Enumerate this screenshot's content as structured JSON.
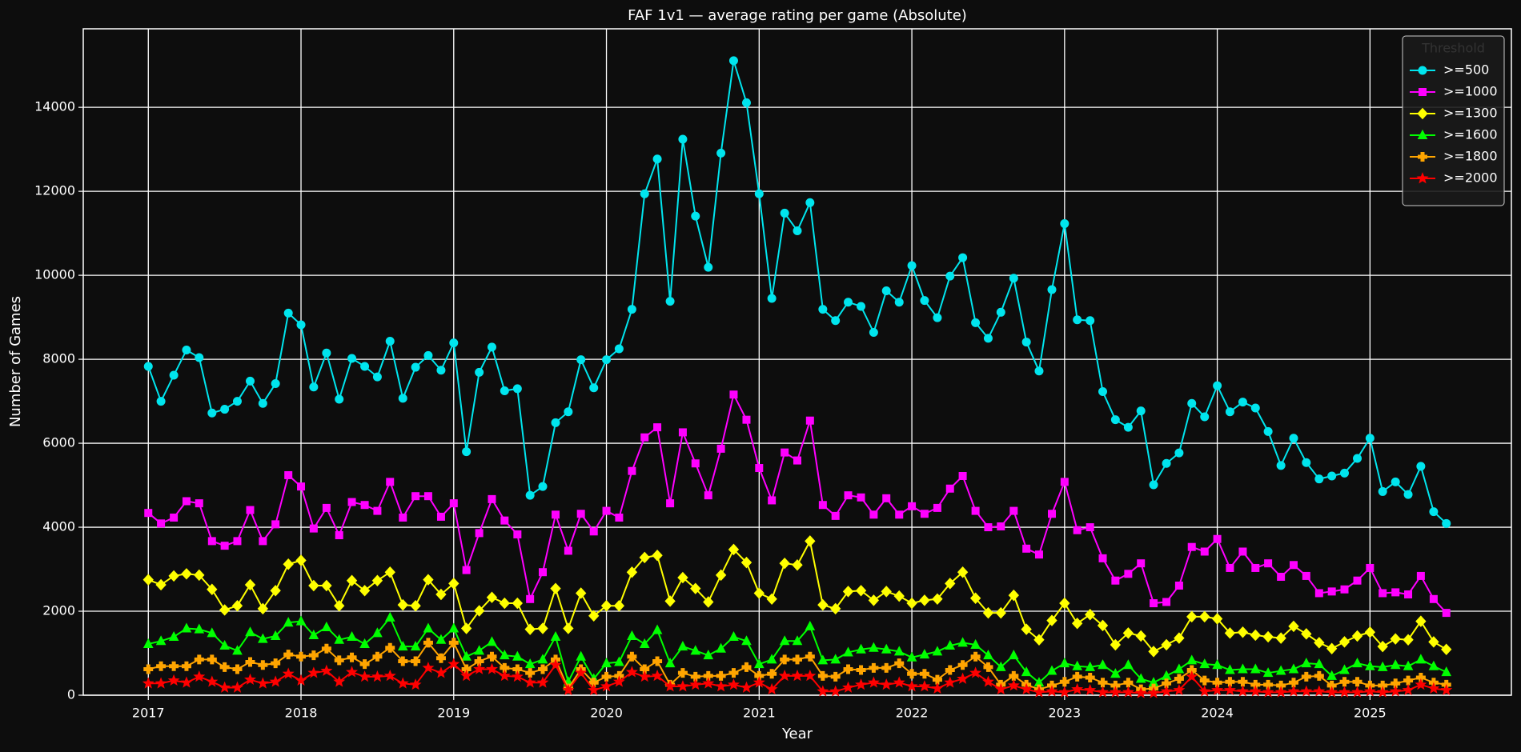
{
  "chart_data": {
    "type": "line",
    "title": "FAF 1v1 — average rating per game (Absolute)",
    "xlabel": "Year",
    "ylabel": "Number of Games",
    "x": [
      2017,
      2017.083,
      2017.167,
      2017.25,
      2017.333,
      2017.417,
      2017.5,
      2017.583,
      2017.667,
      2017.75,
      2017.833,
      2017.917,
      2018,
      2018.083,
      2018.167,
      2018.25,
      2018.333,
      2018.417,
      2018.5,
      2018.583,
      2018.667,
      2018.75,
      2018.833,
      2018.917,
      2019,
      2019.083,
      2019.167,
      2019.25,
      2019.333,
      2019.417,
      2019.5,
      2019.583,
      2019.667,
      2019.75,
      2019.833,
      2019.917,
      2020,
      2020.083,
      2020.167,
      2020.25,
      2020.333,
      2020.417,
      2020.5,
      2020.583,
      2020.667,
      2020.75,
      2020.833,
      2020.917,
      2021,
      2021.083,
      2021.167,
      2021.25,
      2021.333,
      2021.417,
      2021.5,
      2021.583,
      2021.667,
      2021.75,
      2021.833,
      2021.917,
      2022,
      2022.083,
      2022.167,
      2022.25,
      2022.333,
      2022.417,
      2022.5,
      2022.583,
      2022.667,
      2022.75,
      2022.833,
      2022.917,
      2023,
      2023.083,
      2023.167,
      2023.25,
      2023.333,
      2023.417,
      2023.5,
      2023.583,
      2023.667,
      2023.75,
      2023.833,
      2023.917,
      2024,
      2024.083,
      2024.167,
      2024.25,
      2024.333,
      2024.417,
      2024.5,
      2024.583,
      2024.667,
      2024.75,
      2024.833,
      2024.917,
      2025,
      2025.083,
      2025.167,
      2025.25,
      2025.333,
      2025.417,
      2025.5
    ],
    "xlim": [
      2016.574,
      2025.926
    ],
    "xticks": [
      2017,
      2018,
      2019,
      2020,
      2021,
      2022,
      2023,
      2024,
      2025
    ],
    "ylim": [
      0,
      15870
    ],
    "yticks": [
      0,
      2000,
      4000,
      6000,
      8000,
      10000,
      12000,
      14000
    ],
    "grid": true,
    "legend_title": "Threshold",
    "legend_loc": "upper right",
    "series": [
      {
        "name": ">=500",
        "color": "#00e5ee",
        "marker": "o",
        "values": [
          7830,
          7000,
          7620,
          8220,
          8040,
          6720,
          6810,
          7000,
          7480,
          6950,
          7420,
          9100,
          8820,
          7340,
          8150,
          7050,
          8020,
          7830,
          7580,
          8430,
          7070,
          7810,
          8090,
          7740,
          8390,
          5800,
          7690,
          8290,
          7250,
          7300,
          4760,
          4970,
          6490,
          6750,
          7990,
          7320,
          7990,
          8250,
          9190,
          11940,
          12770,
          9380,
          13240,
          11410,
          10190,
          12910,
          15110,
          14110,
          11940,
          9450,
          11480,
          11060,
          11730,
          9190,
          8920,
          9360,
          9260,
          8640,
          9630,
          9360,
          10230,
          9400,
          8990,
          9980,
          10420,
          8870,
          8500,
          9120,
          9930,
          8410,
          7720,
          9660,
          11230,
          8940,
          8920,
          7230,
          6560,
          6380,
          6770,
          5010,
          5520,
          5770,
          6950,
          6630,
          7370,
          6750,
          6980,
          6840,
          6280,
          5470,
          6120,
          5540,
          5150,
          5220,
          5290,
          5640,
          6120,
          4850,
          5080,
          4780,
          5450,
          4370,
          4090
        ]
      },
      {
        "name": ">=1000",
        "color": "#ff00ff",
        "marker": "s",
        "values": [
          4340,
          4090,
          4230,
          4620,
          4570,
          3670,
          3560,
          3670,
          4410,
          3670,
          4070,
          5240,
          4970,
          3970,
          4460,
          3810,
          4600,
          4530,
          4390,
          5080,
          4230,
          4740,
          4740,
          4250,
          4570,
          2980,
          3860,
          4670,
          4160,
          3830,
          2290,
          2930,
          4300,
          3440,
          4320,
          3900,
          4390,
          4230,
          5340,
          6140,
          6380,
          4570,
          6260,
          5520,
          4760,
          5870,
          7160,
          6560,
          5410,
          4640,
          5780,
          5590,
          6540,
          4530,
          4270,
          4760,
          4710,
          4300,
          4690,
          4300,
          4500,
          4320,
          4460,
          4920,
          5220,
          4390,
          4000,
          4020,
          4390,
          3490,
          3350,
          4320,
          5080,
          3930,
          4000,
          3260,
          2730,
          2890,
          3140,
          2190,
          2220,
          2610,
          3530,
          3420,
          3720,
          3030,
          3420,
          3030,
          3140,
          2820,
          3100,
          2840,
          2430,
          2470,
          2520,
          2730,
          3030,
          2430,
          2450,
          2400,
          2840,
          2290,
          1960
        ]
      },
      {
        "name": ">=1300",
        "color": "#ffff00",
        "marker": "D",
        "values": [
          2750,
          2630,
          2840,
          2890,
          2860,
          2520,
          2030,
          2130,
          2630,
          2060,
          2490,
          3120,
          3210,
          2610,
          2610,
          2130,
          2730,
          2490,
          2730,
          2930,
          2150,
          2130,
          2750,
          2400,
          2660,
          1590,
          2010,
          2330,
          2190,
          2190,
          1570,
          1590,
          2540,
          1590,
          2430,
          1890,
          2130,
          2130,
          2930,
          3280,
          3330,
          2240,
          2800,
          2540,
          2220,
          2860,
          3470,
          3160,
          2430,
          2290,
          3140,
          3100,
          3670,
          2150,
          2060,
          2470,
          2490,
          2260,
          2470,
          2360,
          2190,
          2260,
          2290,
          2660,
          2930,
          2310,
          1960,
          1960,
          2380,
          1570,
          1320,
          1780,
          2190,
          1710,
          1920,
          1660,
          1200,
          1480,
          1410,
          1040,
          1200,
          1360,
          1870,
          1870,
          1820,
          1480,
          1500,
          1430,
          1390,
          1360,
          1640,
          1460,
          1250,
          1110,
          1270,
          1410,
          1500,
          1160,
          1340,
          1320,
          1760,
          1270,
          1090
        ]
      },
      {
        "name": ">=1600",
        "color": "#00ff00",
        "marker": "^",
        "values": [
          1220,
          1290,
          1390,
          1590,
          1570,
          1480,
          1180,
          1060,
          1500,
          1340,
          1410,
          1730,
          1760,
          1430,
          1620,
          1320,
          1390,
          1220,
          1480,
          1850,
          1160,
          1160,
          1590,
          1320,
          1590,
          920,
          1060,
          1270,
          950,
          920,
          740,
          850,
          1390,
          320,
          920,
          390,
          760,
          790,
          1410,
          1220,
          1550,
          760,
          1160,
          1060,
          950,
          1110,
          1390,
          1290,
          740,
          850,
          1290,
          1290,
          1640,
          830,
          850,
          1020,
          1090,
          1130,
          1090,
          1040,
          900,
          970,
          1040,
          1180,
          1250,
          1200,
          950,
          670,
          950,
          550,
          300,
          580,
          760,
          690,
          670,
          720,
          510,
          720,
          390,
          300,
          460,
          620,
          830,
          740,
          720,
          600,
          620,
          620,
          530,
          580,
          620,
          760,
          740,
          460,
          600,
          760,
          690,
          670,
          720,
          690,
          850,
          690,
          550
        ]
      },
      {
        "name": ">=1800",
        "color": "#ffa500",
        "marker": "P",
        "values": [
          620,
          690,
          690,
          690,
          850,
          850,
          670,
          620,
          790,
          720,
          760,
          970,
          920,
          950,
          1110,
          830,
          900,
          740,
          920,
          1130,
          810,
          810,
          1250,
          880,
          1250,
          620,
          810,
          920,
          650,
          620,
          530,
          620,
          850,
          160,
          620,
          300,
          440,
          460,
          920,
          620,
          810,
          250,
          530,
          440,
          460,
          460,
          530,
          670,
          460,
          510,
          850,
          850,
          920,
          460,
          440,
          620,
          600,
          650,
          650,
          760,
          510,
          510,
          370,
          600,
          720,
          920,
          670,
          250,
          460,
          250,
          140,
          230,
          320,
          440,
          420,
          300,
          230,
          300,
          140,
          160,
          280,
          390,
          600,
          350,
          300,
          320,
          320,
          250,
          250,
          230,
          300,
          440,
          460,
          230,
          320,
          320,
          230,
          230,
          280,
          350,
          420,
          300,
          250
        ]
      },
      {
        "name": ">=2000",
        "color": "#ff0000",
        "marker": "*",
        "values": [
          280,
          280,
          350,
          300,
          440,
          320,
          180,
          180,
          370,
          280,
          320,
          510,
          350,
          530,
          580,
          320,
          550,
          440,
          440,
          460,
          280,
          250,
          650,
          530,
          740,
          460,
          620,
          620,
          460,
          440,
          300,
          300,
          720,
          120,
          530,
          120,
          210,
          320,
          550,
          440,
          460,
          210,
          210,
          250,
          280,
          210,
          250,
          180,
          300,
          140,
          460,
          460,
          460,
          90,
          90,
          180,
          250,
          300,
          250,
          300,
          210,
          210,
          160,
          300,
          390,
          530,
          320,
          140,
          230,
          140,
          70,
          90,
          70,
          140,
          120,
          70,
          70,
          70,
          50,
          50,
          90,
          120,
          440,
          90,
          120,
          120,
          90,
          90,
          70,
          70,
          90,
          90,
          90,
          70,
          70,
          70,
          90,
          70,
          90,
          120,
          250,
          160,
          120
        ]
      }
    ]
  }
}
